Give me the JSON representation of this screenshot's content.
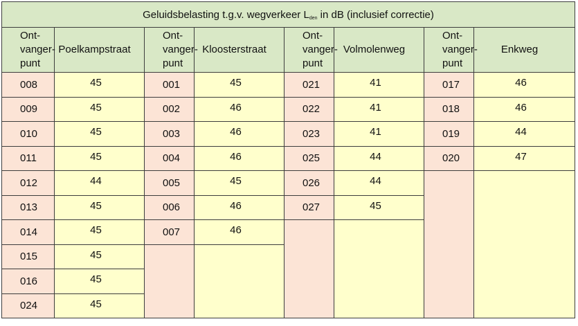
{
  "table": {
    "title_prefix": "Geluidsbelasting t.g.v. wegverkeer  L",
    "title_sub": "den",
    "title_suffix": " in dB  (inclusief correctie)",
    "row_header_label": "Ont-\nvanger-\npunt",
    "groups": [
      {
        "street": "Poelkampstraat",
        "rows": [
          {
            "punt": "008",
            "val": "45"
          },
          {
            "punt": "009",
            "val": "45"
          },
          {
            "punt": "010",
            "val": "45"
          },
          {
            "punt": "011",
            "val": "45"
          },
          {
            "punt": "012",
            "val": "44"
          },
          {
            "punt": "013",
            "val": "45"
          },
          {
            "punt": "014",
            "val": "45"
          },
          {
            "punt": "015",
            "val": "45"
          },
          {
            "punt": "016",
            "val": "45"
          },
          {
            "punt": "024",
            "val": "45"
          }
        ]
      },
      {
        "street": "Kloosterstraat",
        "rows": [
          {
            "punt": "001",
            "val": "45"
          },
          {
            "punt": "002",
            "val": "46"
          },
          {
            "punt": "003",
            "val": "46"
          },
          {
            "punt": "004",
            "val": "46"
          },
          {
            "punt": "005",
            "val": "45"
          },
          {
            "punt": "006",
            "val": "46"
          },
          {
            "punt": "007",
            "val": "46"
          }
        ]
      },
      {
        "street": "Volmolenweg",
        "rows": [
          {
            "punt": "021",
            "val": "41"
          },
          {
            "punt": "022",
            "val": "41"
          },
          {
            "punt": "023",
            "val": "41"
          },
          {
            "punt": "025",
            "val": "44"
          },
          {
            "punt": "026",
            "val": "44"
          },
          {
            "punt": "027",
            "val": "45"
          }
        ]
      },
      {
        "street": "Enkweg",
        "rows": [
          {
            "punt": "017",
            "val": "46"
          },
          {
            "punt": "018",
            "val": "46"
          },
          {
            "punt": "019",
            "val": "44"
          },
          {
            "punt": "020",
            "val": "47"
          }
        ]
      }
    ],
    "colors": {
      "header_bg": "#d9e8c6",
      "punt_bg": "#fce4d6",
      "value_bg": "#ffffcc",
      "border": "#3c3c3c"
    }
  }
}
